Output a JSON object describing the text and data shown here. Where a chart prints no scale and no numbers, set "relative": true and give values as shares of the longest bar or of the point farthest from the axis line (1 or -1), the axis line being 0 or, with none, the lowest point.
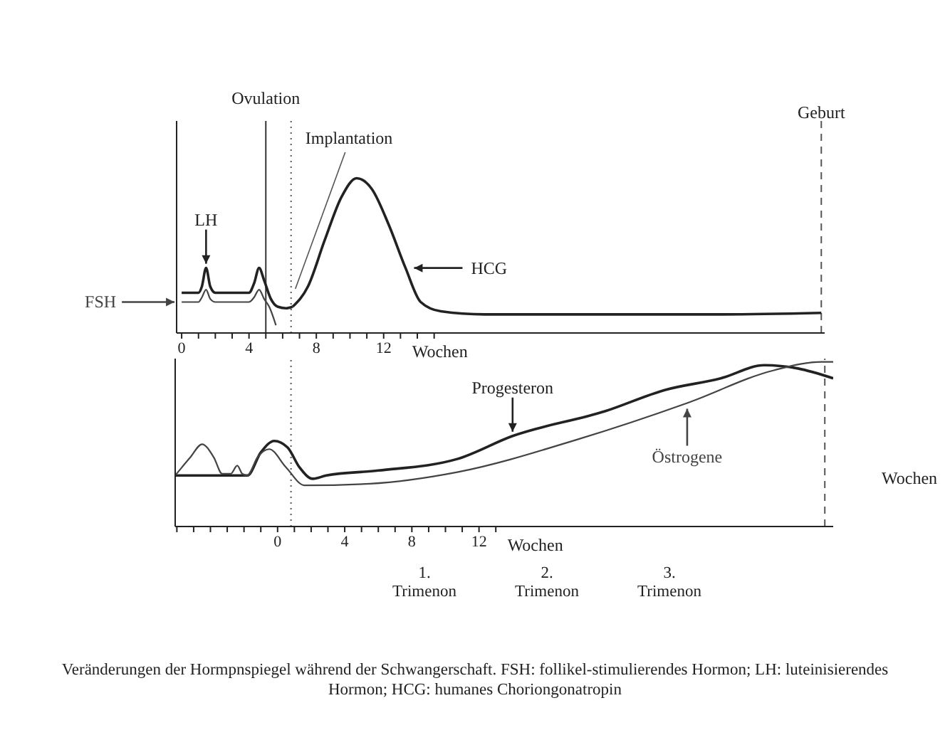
{
  "chart_data": [
    {
      "type": "line",
      "relative": true,
      "xlabel": "Wochen",
      "xlim": [
        -0.3,
        38.2
      ],
      "xticks": [
        0,
        {
          "value": 1,
          "label": null
        },
        {
          "value": 2,
          "label": null
        },
        {
          "value": 3,
          "label": null
        },
        4,
        {
          "value": 5,
          "label": null
        },
        {
          "value": 6,
          "label": null
        },
        {
          "value": 7,
          "label": null
        },
        8,
        {
          "value": 9,
          "label": null
        },
        {
          "value": 10,
          "label": null
        },
        {
          "value": 11,
          "label": null
        },
        12,
        {
          "value": 13,
          "label": null
        },
        {
          "value": 14,
          "label": null
        },
        {
          "value": 15,
          "label": null
        }
      ],
      "series": [
        {
          "name": "LH",
          "color": "#222222",
          "x": [
            0,
            1,
            1.2,
            1.45,
            1.7,
            2,
            4,
            4.3,
            4.6,
            4.9,
            5.3,
            5.7,
            6.2,
            6.6
          ],
          "values": [
            0.26,
            0.26,
            0.3,
            0.42,
            0.3,
            0.26,
            0.26,
            0.32,
            0.42,
            0.34,
            0.22,
            0.17,
            0.16,
            0.17
          ]
        },
        {
          "name": "FSH",
          "color": "#444444",
          "x": [
            0,
            1,
            1.2,
            1.45,
            1.7,
            2,
            4,
            4.3,
            4.6,
            4.9,
            5.2,
            5.6
          ],
          "values": [
            0.2,
            0.2,
            0.23,
            0.28,
            0.22,
            0.2,
            0.2,
            0.23,
            0.28,
            0.22,
            0.17,
            0.05
          ]
        },
        {
          "name": "HCG",
          "color": "#222222",
          "x": [
            6.6,
            7.5,
            8.5,
            9.5,
            10.4,
            11.3,
            12.3,
            13.3,
            14.2,
            15.4,
            18,
            25,
            32,
            38
          ],
          "values": [
            0.17,
            0.3,
            0.6,
            0.88,
            1,
            0.93,
            0.7,
            0.42,
            0.2,
            0.14,
            0.12,
            0.12,
            0.12,
            0.13
          ]
        }
      ],
      "ref_lines": [
        {
          "axis": "x",
          "value": 5,
          "label": "Ovulation",
          "line_style": "solid",
          "color": "#333333"
        },
        {
          "axis": "x",
          "value": 6.5,
          "label": "Implantation",
          "line_style": "dotted",
          "color": "#555555"
        },
        {
          "axis": "x",
          "value": 38,
          "label": "Geburt",
          "line_style": "dashed",
          "color": "#555555"
        }
      ]
    },
    {
      "type": "line",
      "relative": true,
      "xlabel": "Wochen",
      "xlim": [
        -6.1,
        33.1
      ],
      "xticks": [
        {
          "value": -6,
          "label": null
        },
        {
          "value": -5,
          "label": null
        },
        {
          "value": -4,
          "label": null
        },
        {
          "value": -3,
          "label": null
        },
        {
          "value": -2,
          "label": null
        },
        {
          "value": -1,
          "label": null
        },
        0,
        {
          "value": 1,
          "label": null
        },
        {
          "value": 2,
          "label": null
        },
        {
          "value": 3,
          "label": null
        },
        4,
        {
          "value": 5,
          "label": null
        },
        {
          "value": 6,
          "label": null
        },
        {
          "value": 7,
          "label": null
        },
        8,
        {
          "value": 9,
          "label": null
        },
        {
          "value": 10,
          "label": null
        },
        {
          "value": 11,
          "label": null
        },
        12,
        {
          "value": 13,
          "label": null
        }
      ],
      "series": [
        {
          "name": "Progesteron",
          "color": "#222222",
          "x": [
            -6.1,
            -4,
            -1.8,
            -1,
            -0.2,
            0.6,
            1.3,
            2.1,
            2.9,
            6,
            10.7,
            14,
            19.5,
            23.1,
            26.4,
            29,
            31,
            33.1
          ],
          "values": [
            0.31,
            0.31,
            0.31,
            0.45,
            0.52,
            0.48,
            0.36,
            0.29,
            0.31,
            0.34,
            0.41,
            0.55,
            0.7,
            0.83,
            0.9,
            0.98,
            0.96,
            0.9
          ]
        },
        {
          "name": "Östrogene",
          "color": "#444444",
          "x": [
            -6.1,
            -5.2,
            -4.5,
            -3.8,
            -3.3,
            -2.8,
            -2.4,
            -2.1,
            -1.8,
            -1.2,
            -0.5,
            0.5,
            1.6,
            5.5,
            10.7,
            17.9,
            24.4,
            29.6,
            32.4,
            33.1
          ],
          "values": [
            0.31,
            0.42,
            0.5,
            0.42,
            0.32,
            0.32,
            0.37,
            0.32,
            0.31,
            0.42,
            0.47,
            0.36,
            0.25,
            0.26,
            0.33,
            0.53,
            0.75,
            0.95,
            1,
            1
          ]
        }
      ],
      "ref_lines": [
        {
          "axis": "x",
          "value": 0.8,
          "line_style": "dotted",
          "color": "#555555"
        },
        {
          "axis": "x",
          "value": 32.6,
          "line_style": "dashed",
          "color": "#555555"
        }
      ],
      "annotations": [
        "Wochen",
        "1. Trimenon",
        "2. Trimenon",
        "3. Trimenon",
        "Veränderungen der Hormpnspiegel während der Schwangerschaft. FSH: follikel-stimulierendes Hormon; LH: luteinisierendes Hormon; HCG: humanes Choriongonatropin"
      ]
    }
  ]
}
